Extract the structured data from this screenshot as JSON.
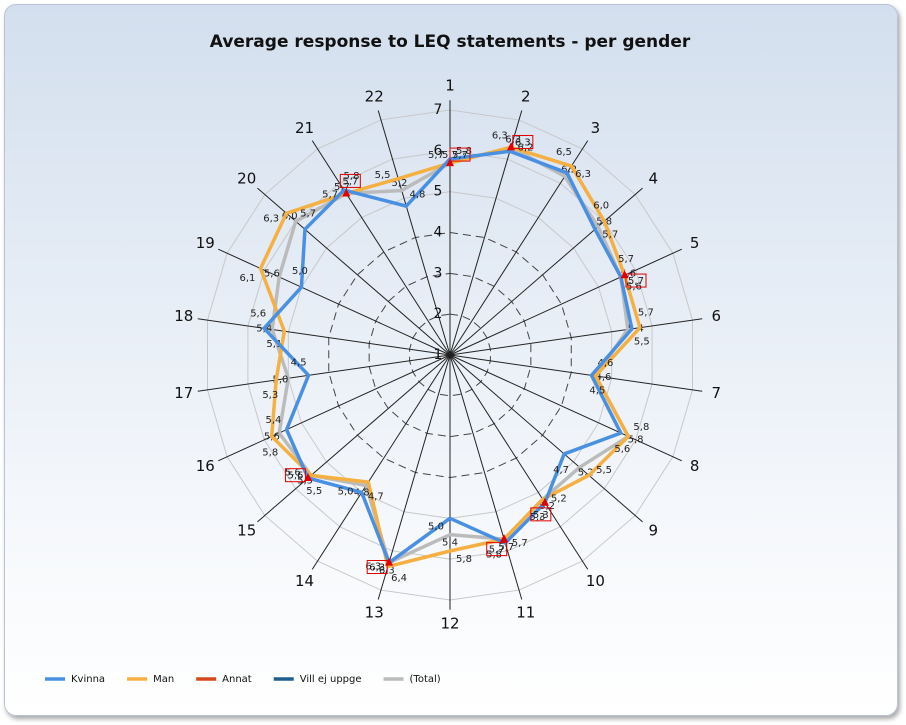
{
  "chart_data": {
    "type": "radar",
    "title": "Average response to LEQ statements - per gender",
    "categories": [
      "1",
      "2",
      "3",
      "4",
      "5",
      "6",
      "7",
      "8",
      "9",
      "10",
      "11",
      "12",
      "13",
      "14",
      "15",
      "16",
      "17",
      "18",
      "19",
      "20",
      "21",
      "22"
    ],
    "rlim": [
      1,
      7
    ],
    "rticks": [
      1,
      2,
      3,
      4,
      5,
      6,
      7
    ],
    "grid": true,
    "legend": "bottom-left",
    "series": [
      {
        "name": "Kvinna",
        "color": "#4a90e2",
        "values": [
          5.8,
          6.2,
          6.3,
          5.7,
          5.6,
          5.5,
          4.5,
          5.6,
          4.7,
          5.3,
          5.8,
          5.0,
          6.3,
          5.0,
          5.6,
          5.4,
          4.5,
          5.6,
          5.0,
          5.7,
          5.8,
          4.8
        ],
        "value_labels": [
          "5,8",
          "6,2",
          "6,3",
          "5,7",
          "5,6",
          "5,5",
          "4,5",
          "5,6",
          "4,7",
          "5,3",
          "5,8",
          "5,0",
          "6,3",
          "5,0",
          "5,6",
          "5,4",
          "4,5",
          "5,6",
          "5,0",
          "5,7",
          "5,8",
          "4,8"
        ]
      },
      {
        "name": "Man",
        "color": "#f5b041",
        "values": [
          5.7,
          6.3,
          6.5,
          6.0,
          5.7,
          5.7,
          4.6,
          5.8,
          5.5,
          5.2,
          5.7,
          5.8,
          6.4,
          4.7,
          5.5,
          5.8,
          5.3,
          5.1,
          6.1,
          6.3,
          5.7,
          5.5
        ],
        "value_labels": [
          "5,7",
          "6,3",
          "6,5",
          "6,0",
          "5,7",
          "5,7",
          "4,6",
          "5,8",
          "5,5",
          "5,2",
          "5,7",
          "5,8",
          "6,4",
          "4,7",
          "5,5",
          "5,8",
          "5,3",
          "5,1",
          "6,1",
          "6,3",
          "5,7",
          "5,5"
        ]
      },
      {
        "name": "Annat",
        "color": "#d9481c",
        "values": [
          5.7,
          6.3,
          null,
          null,
          5.7,
          null,
          null,
          null,
          null,
          5.3,
          5.7,
          null,
          6.3,
          null,
          5.6,
          null,
          null,
          null,
          null,
          null,
          5.7,
          null
        ],
        "value_labels": [
          "5,7",
          "6,3",
          null,
          null,
          "5,7",
          null,
          null,
          null,
          null,
          "5,3",
          "5,7",
          null,
          "6,3",
          null,
          "5,6",
          null,
          null,
          null,
          null,
          null,
          "5,7",
          null
        ]
      },
      {
        "name": "Vill ej uppge",
        "color": "#1f5f8b",
        "values": [
          null,
          null,
          null,
          null,
          null,
          null,
          null,
          null,
          null,
          null,
          null,
          null,
          null,
          null,
          null,
          null,
          null,
          null,
          null,
          null,
          null,
          null
        ]
      },
      {
        "name": "(Total)",
        "color": "#bbbbbb",
        "values": [
          5.7,
          6.3,
          6.2,
          5.8,
          5.6,
          5.4,
          4.6,
          5.8,
          5.2,
          5.2,
          5.7,
          5.4,
          6.3,
          4.8,
          5.5,
          5.6,
          5.0,
          5.4,
          5.6,
          6.0,
          5.7,
          5.2
        ],
        "value_labels": [
          "5,7",
          "6,3",
          "6,2",
          "5,8",
          "5,6",
          "5,4",
          "4,6",
          "5,8",
          "5,2",
          "5,2",
          "5,7",
          "5,4",
          "6,3",
          "4,8",
          "5,5",
          "5,6",
          "5,0",
          "5,4",
          "5,6",
          "6,0",
          "5,7",
          "5,2"
        ]
      }
    ]
  }
}
